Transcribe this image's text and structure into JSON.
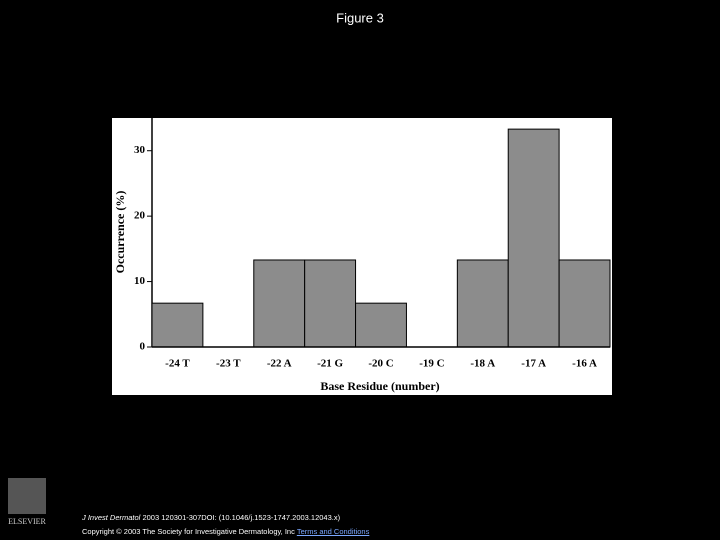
{
  "slide_title": "Figure 3",
  "chart_data": {
    "type": "bar",
    "x_label": "Base Residue (number)",
    "y_label": "Occurrence (%)",
    "categories": [
      "-24 T",
      "-23 T",
      "-22 A",
      "-21 G",
      "-20 C",
      "-19 C",
      "-18 A",
      "-17 A",
      "-16 A"
    ],
    "values": [
      6.7,
      0,
      13.3,
      13.3,
      6.7,
      0,
      13.3,
      33.3,
      13.3
    ],
    "color": "#8c8c8c",
    "ylim": [
      0,
      35
    ],
    "yticks": [
      0,
      10,
      20,
      30
    ],
    "grid": false
  },
  "footer": {
    "journal": "J Invest Dermatol",
    "citation": "2003 120301-307DOI: (10.1046/j.1523-1747.2003.12043.x)",
    "copyright": "Copyright © 2003 The Society for Investigative Dermatology, Inc",
    "link": "Terms and Conditions",
    "logo": "ELSEVIER"
  }
}
